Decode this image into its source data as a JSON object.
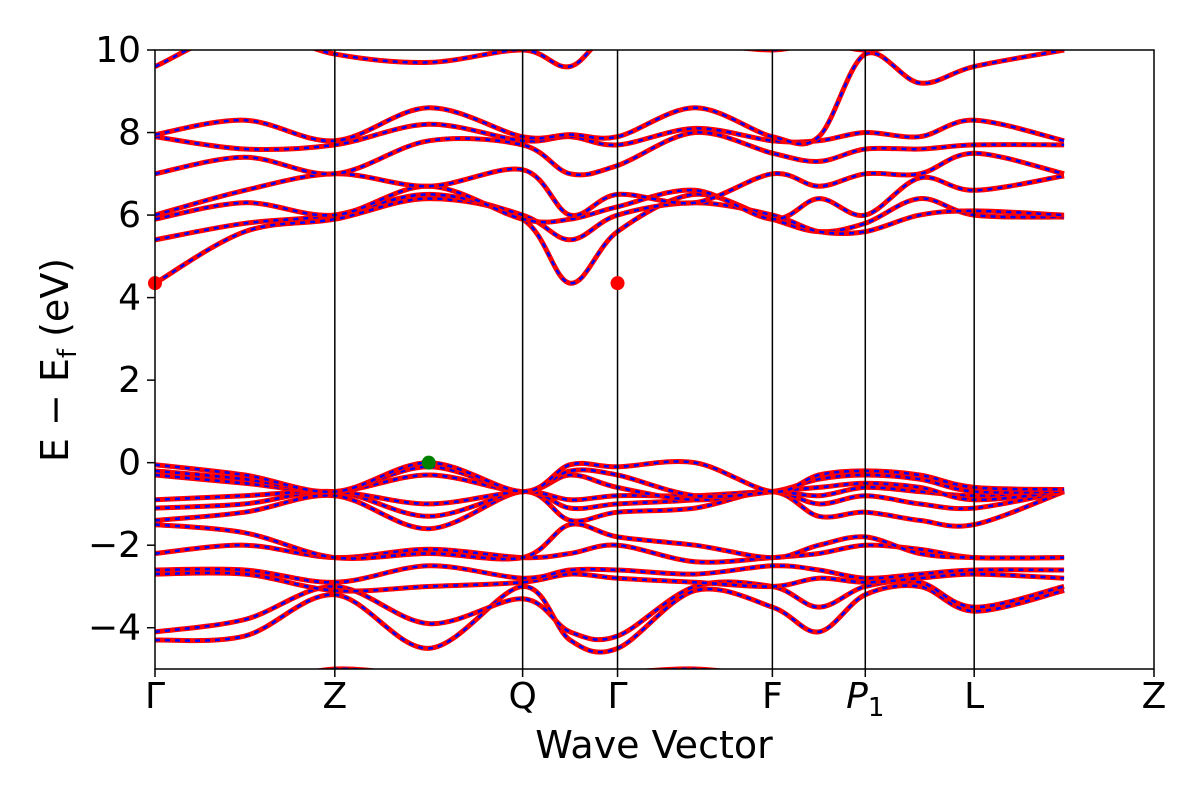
{
  "chart_data": {
    "type": "line",
    "title": "",
    "xlabel": "Wave Vector",
    "ylabel": "E  −  E_f (eV)",
    "ylabel_parts": {
      "main": "E  −  E",
      "sub": "f",
      "unit": " (eV)"
    },
    "ylim": [
      -5,
      10
    ],
    "yticks": [
      -4,
      -2,
      0,
      2,
      4,
      6,
      8,
      10
    ],
    "ytick_labels": [
      "−4",
      "−2",
      "0",
      "2",
      "4",
      "6",
      "8",
      "10"
    ],
    "high_symmetry_points": [
      {
        "label": "Γ",
        "x": 0.0
      },
      {
        "label": "Z",
        "x": 0.18
      },
      {
        "label": "Q",
        "x": 0.368
      },
      {
        "label": "Γ",
        "x": 0.463
      },
      {
        "label": "F",
        "x": 0.618
      },
      {
        "label": "P1",
        "label_main": "P",
        "label_sub": "1",
        "x": 0.711
      },
      {
        "label": "L",
        "x": 0.82
      },
      {
        "label": "Z",
        "x": 1.0
      }
    ],
    "grid": false,
    "legend": "none",
    "series_style": {
      "solid_color": "#ff0000",
      "dash_color": "#0000ff"
    },
    "markers": [
      {
        "name": "cbm-1",
        "x": 0.0,
        "y": 4.35,
        "color": "#ff0000"
      },
      {
        "name": "cbm-2",
        "x": 0.463,
        "y": 4.35,
        "color": "#ff0000"
      },
      {
        "name": "vbm",
        "x": 0.274,
        "y": 0.0,
        "color": "#008000"
      }
    ],
    "bands": [
      {
        "y": [
          -5.2,
          -5.4,
          -5.0,
          -5.2,
          -5.3,
          -5.2,
          -5.1,
          -5.0,
          -5.2
        ]
      },
      {
        "y": [
          -4.3,
          -4.2,
          -3.2,
          -4.5,
          -3.0,
          -4.3,
          -4.5,
          -3.1,
          -3.5,
          -4.1,
          -3.2,
          -3.0,
          -3.6,
          -3.1
        ]
      },
      {
        "y": [
          -4.1,
          -3.8,
          -3.0,
          -3.9,
          -3.3,
          -4.1,
          -4.2,
          -3.0,
          -3.0,
          -3.5,
          -3.0,
          -2.9,
          -3.5,
          -3.0
        ]
      },
      {
        "y": [
          -2.7,
          -2.7,
          -3.1,
          -3.0,
          -2.9,
          -2.7,
          -2.8,
          -2.9,
          -3.0,
          -2.8,
          -2.9,
          -2.8,
          -2.7,
          -2.8
        ]
      },
      {
        "y": [
          -2.6,
          -2.6,
          -2.9,
          -2.5,
          -2.8,
          -2.6,
          -2.6,
          -2.7,
          -2.5,
          -2.6,
          -2.8,
          -2.7,
          -2.6,
          -2.6
        ]
      },
      {
        "y": [
          -2.2,
          -2.0,
          -2.3,
          -2.1,
          -2.3,
          -2.2,
          -2.0,
          -2.4,
          -2.3,
          -2.2,
          -2.0,
          -2.1,
          -2.3,
          -2.3
        ]
      },
      {
        "y": [
          -1.5,
          -1.7,
          -2.3,
          -2.2,
          -2.3,
          -1.5,
          -1.8,
          -2.0,
          -2.3,
          -2.0,
          -1.8,
          -2.2,
          -2.3,
          -2.3
        ]
      },
      {
        "y": [
          -1.4,
          -1.2,
          -0.8,
          -1.6,
          -0.7,
          -1.4,
          -1.2,
          -1.1,
          -0.7,
          -1.3,
          -1.2,
          -1.4,
          -1.5,
          -0.7
        ]
      },
      {
        "y": [
          -1.1,
          -1.0,
          -0.7,
          -1.3,
          -0.7,
          -1.1,
          -1.0,
          -0.9,
          -0.7,
          -1.0,
          -0.8,
          -1.0,
          -1.1,
          -0.7
        ]
      },
      {
        "y": [
          -0.9,
          -0.8,
          -0.7,
          -1.0,
          -0.7,
          -0.9,
          -0.8,
          -0.8,
          -0.7,
          -0.8,
          -0.6,
          -0.7,
          -0.8,
          -0.7
        ]
      },
      {
        "y": [
          -0.3,
          -0.5,
          -0.7,
          -0.3,
          -0.7,
          -0.3,
          -0.6,
          -0.9,
          -0.7,
          -0.6,
          -0.5,
          -0.6,
          -0.9,
          -0.7
        ]
      },
      {
        "y": [
          -0.2,
          -0.4,
          -0.7,
          -0.1,
          -0.7,
          -0.2,
          -0.3,
          -0.8,
          -0.7,
          -0.4,
          -0.3,
          -0.4,
          -0.7,
          -0.7
        ]
      },
      {
        "y": [
          -0.05,
          -0.3,
          -0.7,
          0.0,
          -0.7,
          -0.05,
          -0.1,
          0.0,
          -0.7,
          -0.3,
          -0.2,
          -0.3,
          -0.6,
          -0.65
        ]
      },
      {
        "y": [
          4.35,
          5.6,
          5.9,
          6.4,
          5.9,
          4.35,
          5.6,
          6.5,
          5.9,
          5.6,
          5.8,
          6.4,
          6.0,
          5.95
        ]
      },
      {
        "y": [
          5.4,
          5.8,
          6.0,
          6.5,
          6.0,
          5.4,
          6.0,
          6.3,
          6.0,
          5.6,
          5.6,
          6.0,
          6.1,
          6.0
        ]
      },
      {
        "y": [
          5.9,
          6.3,
          6.0,
          6.7,
          5.9,
          5.9,
          6.2,
          6.6,
          5.9,
          6.4,
          6.0,
          6.9,
          6.6,
          6.95
        ]
      },
      {
        "y": [
          6.0,
          6.6,
          7.0,
          6.7,
          7.1,
          6.0,
          6.5,
          6.3,
          7.0,
          6.7,
          7.0,
          7.0,
          7.5,
          7.0
        ]
      },
      {
        "y": [
          7.0,
          7.4,
          7.0,
          7.8,
          7.7,
          7.0,
          7.2,
          8.0,
          7.5,
          7.3,
          7.6,
          7.6,
          7.7,
          7.7
        ]
      },
      {
        "y": [
          7.9,
          7.6,
          7.7,
          8.2,
          7.8,
          7.9,
          7.7,
          8.1,
          7.8,
          7.8,
          8.0,
          7.9,
          8.3,
          7.8
        ]
      },
      {
        "y": [
          7.95,
          8.3,
          7.8,
          8.6,
          7.9,
          7.95,
          7.9,
          8.6,
          7.9,
          7.9,
          9.9,
          9.2,
          9.6,
          10.0
        ]
      },
      {
        "y": [
          9.6,
          10.5,
          9.9,
          9.7,
          10.0,
          9.6,
          10.5,
          10.2,
          10.0,
          10.2,
          10.0,
          10.2,
          10.3,
          10.0
        ]
      }
    ]
  }
}
